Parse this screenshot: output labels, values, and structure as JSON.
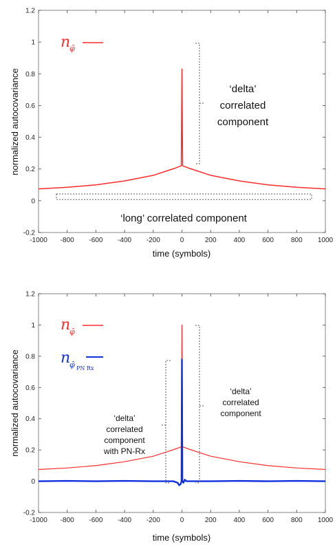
{
  "chart_data": [
    {
      "type": "line",
      "xlabel": "time (symbols)",
      "ylabel": "normalized autocovariance",
      "xlim": [
        -1000,
        1000
      ],
      "ylim": [
        -0.2,
        1.2
      ],
      "xticks": [
        "-1000",
        "-800",
        "-600",
        "-400",
        "-200",
        "0",
        "200",
        "400",
        "600",
        "800",
        "1000"
      ],
      "yticks": [
        "-0.2",
        "0",
        "0.2",
        "0.4",
        "0.6",
        "0.8",
        "1",
        "1.2"
      ],
      "series": [
        {
          "legend_symbol": "n",
          "legend_subscript": "φ̂",
          "color": "#ff2a2a",
          "x": [
            -1000,
            -800,
            -600,
            -400,
            -200,
            -100,
            -50,
            -5,
            0,
            5,
            50,
            100,
            200,
            400,
            600,
            800,
            1000
          ],
          "y": [
            0.075,
            0.085,
            0.1,
            0.125,
            0.16,
            0.19,
            0.205,
            0.22,
            0.83,
            0.22,
            0.205,
            0.19,
            0.16,
            0.125,
            0.1,
            0.085,
            0.075
          ]
        }
      ],
      "annotations": [
        {
          "text": "‘delta’",
          "x": 0,
          "y": 1.0
        },
        {
          "text": "correlated",
          "x": 0,
          "y": 1.0
        },
        {
          "text": "component",
          "x": 0,
          "y": 1.0
        },
        {
          "text": "‘long’ correlated component",
          "x": 0,
          "y": 0.02
        }
      ]
    },
    {
      "type": "line",
      "xlabel": "time (symbols)",
      "ylabel": "normalized autocovariance",
      "xlim": [
        -1000,
        1000
      ],
      "ylim": [
        -0.2,
        1.2
      ],
      "xticks": [
        "-1000",
        "-800",
        "-600",
        "-400",
        "-200",
        "0",
        "200",
        "400",
        "600",
        "800",
        "1000"
      ],
      "yticks": [
        "-0.2",
        "0",
        "0.2",
        "0.4",
        "0.6",
        "0.8",
        "1",
        "1.2"
      ],
      "series": [
        {
          "legend_symbol": "n",
          "legend_subscript": "φ̂",
          "color": "#ff2a2a",
          "x": [
            -1000,
            -800,
            -600,
            -400,
            -200,
            -100,
            -50,
            -5,
            0,
            5,
            50,
            100,
            200,
            400,
            600,
            800,
            1000
          ],
          "y": [
            0.075,
            0.085,
            0.1,
            0.125,
            0.16,
            0.19,
            0.205,
            0.22,
            1.0,
            0.22,
            0.205,
            0.19,
            0.16,
            0.125,
            0.1,
            0.085,
            0.075
          ]
        },
        {
          "legend_symbol": "n",
          "legend_subscript": "φ̂",
          "legend_subscript2": "PN Rx",
          "color": "#1030e0",
          "x": [
            -1000,
            -800,
            -600,
            -400,
            -200,
            -60,
            -30,
            -20,
            -10,
            -3,
            0,
            3,
            10,
            20,
            30,
            60,
            200,
            400,
            600,
            800,
            1000
          ],
          "y": [
            0.0,
            0.002,
            0.0,
            0.002,
            0.0,
            0.0,
            -0.01,
            -0.025,
            -0.02,
            0.0,
            0.78,
            0.0,
            -0.01,
            0.01,
            0.0,
            0.0,
            0.0,
            0.002,
            0.0,
            0.002,
            0.0
          ]
        }
      ],
      "annotations": [
        {
          "text": "‘delta’",
          "x": 0,
          "y": 0.9
        },
        {
          "text": "correlated",
          "x": 0,
          "y": 0.9
        },
        {
          "text": "component",
          "x": 0,
          "y": 0.9
        },
        {
          "text": "‘delta’",
          "x": 0,
          "y": 0.5
        },
        {
          "text": "correlated",
          "x": 0,
          "y": 0.5
        },
        {
          "text": "component",
          "x": 0,
          "y": 0.5
        },
        {
          "text": "with PN-Rx",
          "x": 0,
          "y": 0.5
        }
      ]
    }
  ]
}
